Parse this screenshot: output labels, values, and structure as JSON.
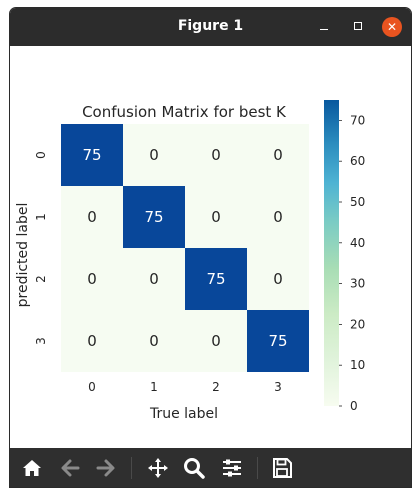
{
  "window": {
    "title": "Figure 1"
  },
  "toolbar": {
    "icons": [
      "home-icon",
      "back-arrow-icon",
      "forward-arrow-icon",
      "pan-icon",
      "zoom-icon",
      "configure-subplots-icon",
      "save-icon"
    ]
  },
  "chart_data": {
    "type": "heatmap",
    "title": "Confusion Matrix for best K",
    "xlabel": "True label",
    "ylabel": "predicted label",
    "x_categories": [
      "0",
      "1",
      "2",
      "3"
    ],
    "y_categories": [
      "0",
      "1",
      "2",
      "3"
    ],
    "matrix": [
      [
        75,
        0,
        0,
        0
      ],
      [
        0,
        75,
        0,
        0
      ],
      [
        0,
        0,
        75,
        0
      ],
      [
        0,
        0,
        0,
        75
      ]
    ],
    "colorbar": {
      "ticks": [
        "0",
        "10",
        "20",
        "30",
        "40",
        "50",
        "60",
        "70"
      ],
      "range": [
        0,
        75
      ],
      "colormap": "GnBu"
    },
    "colors": {
      "high": "#08479a",
      "low": "#f6fcf2",
      "high_text": "#ffffff",
      "low_text": "#262626"
    }
  }
}
